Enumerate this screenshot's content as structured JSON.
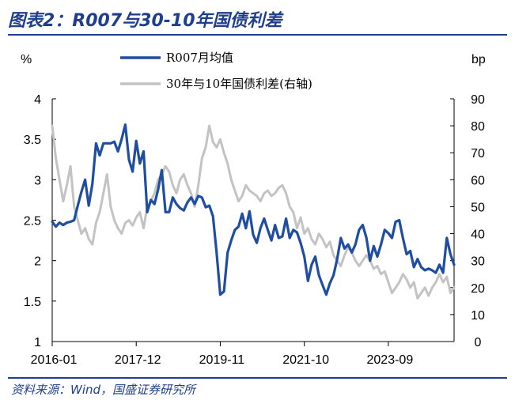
{
  "figure_title": "图表2：R007与30-10年国债利差",
  "source_note": "资料来源：Wind，国盛证券研究所",
  "colors": {
    "r007": "#1f4ea1",
    "spread": "#c3c3c3",
    "accent": "#1f3f8c"
  },
  "chart_data": {
    "type": "line",
    "title": "图表2：R007与30-10年国债利差",
    "left_axis": {
      "unit_label": "%",
      "ylim": [
        1,
        4
      ],
      "ticks": [
        "1",
        "1.5",
        "2",
        "2.5",
        "3",
        "3.5",
        "4"
      ]
    },
    "right_axis": {
      "unit_label": "bp",
      "ylim": [
        0,
        90
      ],
      "ticks": [
        "0",
        "10",
        "20",
        "30",
        "40",
        "50",
        "60",
        "70",
        "80",
        "90"
      ]
    },
    "x_ticks": [
      "2016-01",
      "2017-12",
      "2019-11",
      "2021-10",
      "2023-09"
    ],
    "x_range_months": 110,
    "grid": false,
    "legend_position": "top-center",
    "series": [
      {
        "name": "R007月均值",
        "axis": "left",
        "color": "#1f4ea1",
        "values": [
          2.48,
          2.42,
          2.47,
          2.44,
          2.47,
          2.48,
          2.5,
          2.68,
          2.85,
          3.0,
          2.68,
          2.95,
          3.45,
          3.3,
          3.45,
          3.45,
          3.45,
          3.47,
          3.35,
          3.5,
          3.68,
          3.25,
          3.1,
          3.48,
          3.2,
          3.35,
          2.6,
          2.75,
          2.7,
          2.88,
          3.12,
          2.6,
          2.6,
          2.78,
          2.7,
          2.65,
          2.62,
          2.72,
          2.78,
          2.7,
          2.8,
          2.78,
          2.66,
          2.68,
          2.55,
          2.1,
          1.58,
          1.62,
          2.1,
          2.25,
          2.38,
          2.42,
          2.58,
          2.4,
          2.61,
          2.32,
          2.22,
          2.4,
          2.52,
          2.38,
          2.25,
          2.44,
          2.28,
          2.3,
          2.52,
          2.28,
          2.38,
          2.35,
          2.22,
          2.05,
          1.75,
          1.95,
          2.05,
          1.82,
          1.7,
          1.58,
          1.72,
          1.82,
          2.02,
          2.28,
          2.15,
          2.2,
          2.1,
          2.2,
          2.38,
          2.44,
          2.28,
          2.0,
          2.18,
          2.05,
          2.2,
          2.38,
          2.34,
          2.28,
          2.48,
          2.5,
          2.28,
          2.08,
          2.12,
          1.92,
          2.02,
          1.92,
          1.88,
          1.9,
          1.88,
          1.85,
          1.95,
          1.85,
          2.28,
          2.08,
          1.95
        ]
      },
      {
        "name": "30年与10年国债利差(右轴)",
        "axis": "right",
        "color": "#c3c3c3",
        "values": [
          80,
          68,
          60,
          52,
          58,
          65,
          50,
          45,
          40,
          42,
          38,
          36,
          44,
          48,
          55,
          62,
          50,
          45,
          42,
          40,
          44,
          45,
          43,
          46,
          48,
          42,
          50,
          52,
          55,
          60,
          62,
          65,
          63,
          58,
          55,
          60,
          62,
          58,
          55,
          50,
          58,
          68,
          72,
          80,
          74,
          72,
          75,
          70,
          66,
          60,
          56,
          52,
          54,
          58,
          56,
          55,
          54,
          52,
          55,
          56,
          54,
          55,
          57,
          58,
          55,
          50,
          48,
          42,
          46,
          40,
          42,
          38,
          36,
          40,
          38,
          35,
          37,
          32,
          30,
          28,
          32,
          35,
          33,
          30,
          28,
          30,
          32,
          30,
          27,
          28,
          25,
          26,
          22,
          18,
          20,
          22,
          25,
          23,
          20,
          22,
          16,
          18,
          20,
          17,
          20,
          22,
          25,
          22,
          24,
          18,
          20
        ]
      }
    ]
  }
}
